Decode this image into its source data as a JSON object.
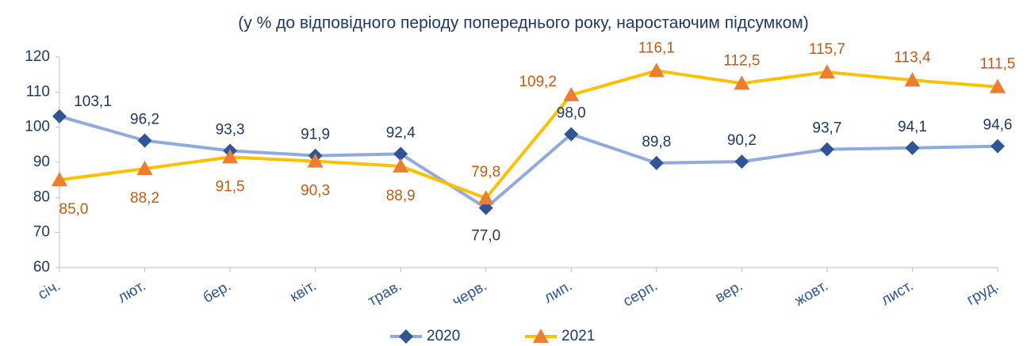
{
  "chart_data": {
    "type": "line",
    "subtitle": "(у % до відповідного періоду попереднього року, наростаючим підсумком)",
    "categories": [
      "січ.",
      "лют.",
      "бер.",
      "квіт.",
      "трав.",
      "черв.",
      "лип.",
      "серп.",
      "вер.",
      "жовт.",
      "лист.",
      "груд."
    ],
    "series": [
      {
        "name": "2020",
        "color": "#8faadc",
        "marker_color": "#2f5597",
        "marker": "diamond",
        "label_color": "#203864",
        "values": [
          103.1,
          96.2,
          93.3,
          91.9,
          92.4,
          77.0,
          98.0,
          89.8,
          90.2,
          93.7,
          94.1,
          94.6
        ],
        "value_labels": [
          "103,1",
          "96,2",
          "93,3",
          "91,9",
          "92,4",
          "77,0",
          "98,0",
          "89,8",
          "90,2",
          "93,7",
          "94,1",
          "94,6"
        ]
      },
      {
        "name": "2021",
        "color": "#ffc000",
        "marker_color": "#ed7d31",
        "marker": "triangle",
        "label_color": "#c55a11",
        "values": [
          85.0,
          88.2,
          91.5,
          90.3,
          88.9,
          79.8,
          109.2,
          116.1,
          112.5,
          115.7,
          113.4,
          111.5
        ],
        "value_labels": [
          "85,0",
          "88,2",
          "91,5",
          "90,3",
          "88,9",
          "79,8",
          "109,2",
          "116,1",
          "112,5",
          "115,7",
          "113,4",
          "111,5"
        ]
      }
    ],
    "ylim": [
      60,
      120
    ],
    "yticks": [
      60,
      70,
      80,
      90,
      100,
      110,
      120
    ],
    "grid": false,
    "legend": "bottom"
  }
}
